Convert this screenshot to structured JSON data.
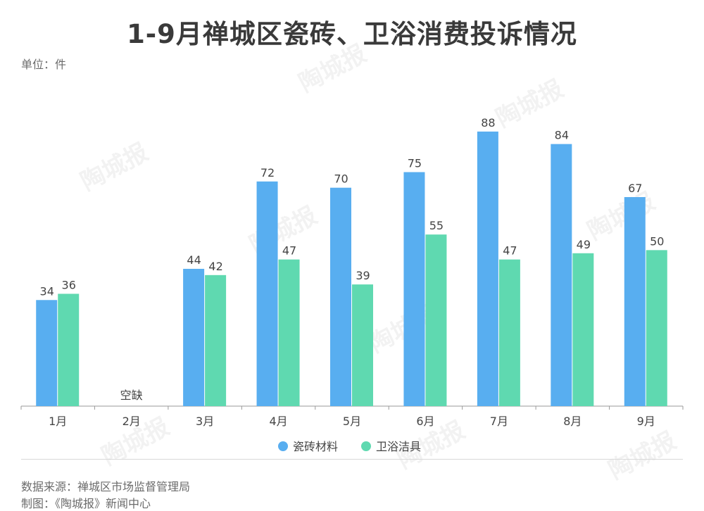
{
  "header": {
    "title": "1-9月禅城区瓷砖、卫浴消费投诉情况",
    "unit": "单位：件"
  },
  "footer": {
    "source": "数据来源：禅城区市场监督管理局",
    "credit": "制图：《陶城报》新闻中心"
  },
  "watermark": "陶城报",
  "colors": {
    "tile": "#58aef0",
    "sanitary": "#5fd9b0",
    "axis": "#9a9a9a",
    "label": "#444444"
  },
  "chart_data": {
    "type": "bar",
    "categories": [
      "1月",
      "2月",
      "3月",
      "4月",
      "5月",
      "6月",
      "7月",
      "8月",
      "9月"
    ],
    "series": [
      {
        "name": "瓷砖材料",
        "values": [
          34,
          null,
          44,
          72,
          70,
          75,
          88,
          84,
          67
        ]
      },
      {
        "name": "卫浴洁具",
        "values": [
          36,
          null,
          42,
          47,
          39,
          55,
          47,
          49,
          50
        ]
      }
    ],
    "annotations": [
      {
        "category": "2月",
        "text": "空缺"
      }
    ],
    "ylim": [
      0,
      100
    ],
    "grid": false,
    "legend": "bottom-center"
  }
}
